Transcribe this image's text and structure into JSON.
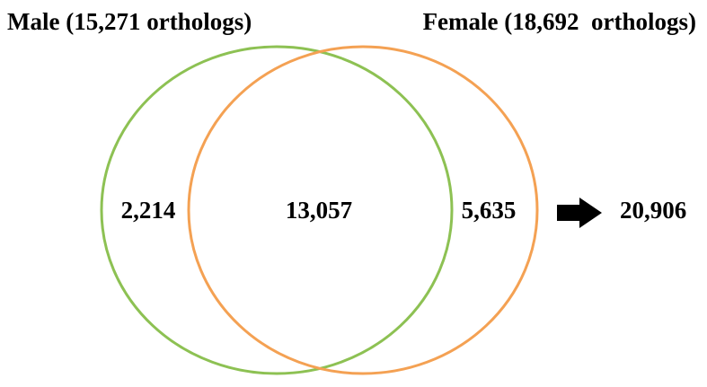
{
  "sets": [
    {
      "label": "Male (15,271 orthologs)",
      "color": "#8dc153"
    },
    {
      "label": "Female (18,692  orthologs)",
      "color": "#f4a153"
    }
  ],
  "regions": {
    "first_only": "2,214",
    "both": "13,057",
    "second_only": "5,635"
  },
  "total": "20,906"
}
